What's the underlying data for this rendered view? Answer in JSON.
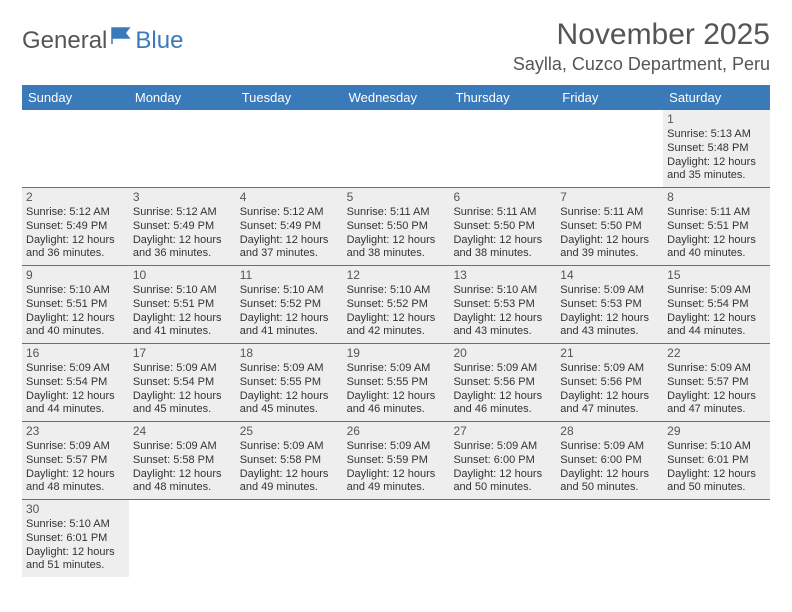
{
  "logo": {
    "text1": "General",
    "text2": "Blue"
  },
  "title": "November 2025",
  "location": "Saylla, Cuzco Department, Peru",
  "colors": {
    "header_bg": "#3b7ab8",
    "cell_bg": "#eeeeee",
    "page_bg": "#ffffff",
    "text": "#333333",
    "title_text": "#555555"
  },
  "weekdays": [
    "Sunday",
    "Monday",
    "Tuesday",
    "Wednesday",
    "Thursday",
    "Friday",
    "Saturday"
  ],
  "weeks": [
    [
      null,
      null,
      null,
      null,
      null,
      null,
      {
        "n": "1",
        "sr": "Sunrise: 5:13 AM",
        "ss": "Sunset: 5:48 PM",
        "d1": "Daylight: 12 hours",
        "d2": "and 35 minutes."
      }
    ],
    [
      {
        "n": "2",
        "sr": "Sunrise: 5:12 AM",
        "ss": "Sunset: 5:49 PM",
        "d1": "Daylight: 12 hours",
        "d2": "and 36 minutes."
      },
      {
        "n": "3",
        "sr": "Sunrise: 5:12 AM",
        "ss": "Sunset: 5:49 PM",
        "d1": "Daylight: 12 hours",
        "d2": "and 36 minutes."
      },
      {
        "n": "4",
        "sr": "Sunrise: 5:12 AM",
        "ss": "Sunset: 5:49 PM",
        "d1": "Daylight: 12 hours",
        "d2": "and 37 minutes."
      },
      {
        "n": "5",
        "sr": "Sunrise: 5:11 AM",
        "ss": "Sunset: 5:50 PM",
        "d1": "Daylight: 12 hours",
        "d2": "and 38 minutes."
      },
      {
        "n": "6",
        "sr": "Sunrise: 5:11 AM",
        "ss": "Sunset: 5:50 PM",
        "d1": "Daylight: 12 hours",
        "d2": "and 38 minutes."
      },
      {
        "n": "7",
        "sr": "Sunrise: 5:11 AM",
        "ss": "Sunset: 5:50 PM",
        "d1": "Daylight: 12 hours",
        "d2": "and 39 minutes."
      },
      {
        "n": "8",
        "sr": "Sunrise: 5:11 AM",
        "ss": "Sunset: 5:51 PM",
        "d1": "Daylight: 12 hours",
        "d2": "and 40 minutes."
      }
    ],
    [
      {
        "n": "9",
        "sr": "Sunrise: 5:10 AM",
        "ss": "Sunset: 5:51 PM",
        "d1": "Daylight: 12 hours",
        "d2": "and 40 minutes."
      },
      {
        "n": "10",
        "sr": "Sunrise: 5:10 AM",
        "ss": "Sunset: 5:51 PM",
        "d1": "Daylight: 12 hours",
        "d2": "and 41 minutes."
      },
      {
        "n": "11",
        "sr": "Sunrise: 5:10 AM",
        "ss": "Sunset: 5:52 PM",
        "d1": "Daylight: 12 hours",
        "d2": "and 41 minutes."
      },
      {
        "n": "12",
        "sr": "Sunrise: 5:10 AM",
        "ss": "Sunset: 5:52 PM",
        "d1": "Daylight: 12 hours",
        "d2": "and 42 minutes."
      },
      {
        "n": "13",
        "sr": "Sunrise: 5:10 AM",
        "ss": "Sunset: 5:53 PM",
        "d1": "Daylight: 12 hours",
        "d2": "and 43 minutes."
      },
      {
        "n": "14",
        "sr": "Sunrise: 5:09 AM",
        "ss": "Sunset: 5:53 PM",
        "d1": "Daylight: 12 hours",
        "d2": "and 43 minutes."
      },
      {
        "n": "15",
        "sr": "Sunrise: 5:09 AM",
        "ss": "Sunset: 5:54 PM",
        "d1": "Daylight: 12 hours",
        "d2": "and 44 minutes."
      }
    ],
    [
      {
        "n": "16",
        "sr": "Sunrise: 5:09 AM",
        "ss": "Sunset: 5:54 PM",
        "d1": "Daylight: 12 hours",
        "d2": "and 44 minutes."
      },
      {
        "n": "17",
        "sr": "Sunrise: 5:09 AM",
        "ss": "Sunset: 5:54 PM",
        "d1": "Daylight: 12 hours",
        "d2": "and 45 minutes."
      },
      {
        "n": "18",
        "sr": "Sunrise: 5:09 AM",
        "ss": "Sunset: 5:55 PM",
        "d1": "Daylight: 12 hours",
        "d2": "and 45 minutes."
      },
      {
        "n": "19",
        "sr": "Sunrise: 5:09 AM",
        "ss": "Sunset: 5:55 PM",
        "d1": "Daylight: 12 hours",
        "d2": "and 46 minutes."
      },
      {
        "n": "20",
        "sr": "Sunrise: 5:09 AM",
        "ss": "Sunset: 5:56 PM",
        "d1": "Daylight: 12 hours",
        "d2": "and 46 minutes."
      },
      {
        "n": "21",
        "sr": "Sunrise: 5:09 AM",
        "ss": "Sunset: 5:56 PM",
        "d1": "Daylight: 12 hours",
        "d2": "and 47 minutes."
      },
      {
        "n": "22",
        "sr": "Sunrise: 5:09 AM",
        "ss": "Sunset: 5:57 PM",
        "d1": "Daylight: 12 hours",
        "d2": "and 47 minutes."
      }
    ],
    [
      {
        "n": "23",
        "sr": "Sunrise: 5:09 AM",
        "ss": "Sunset: 5:57 PM",
        "d1": "Daylight: 12 hours",
        "d2": "and 48 minutes."
      },
      {
        "n": "24",
        "sr": "Sunrise: 5:09 AM",
        "ss": "Sunset: 5:58 PM",
        "d1": "Daylight: 12 hours",
        "d2": "and 48 minutes."
      },
      {
        "n": "25",
        "sr": "Sunrise: 5:09 AM",
        "ss": "Sunset: 5:58 PM",
        "d1": "Daylight: 12 hours",
        "d2": "and 49 minutes."
      },
      {
        "n": "26",
        "sr": "Sunrise: 5:09 AM",
        "ss": "Sunset: 5:59 PM",
        "d1": "Daylight: 12 hours",
        "d2": "and 49 minutes."
      },
      {
        "n": "27",
        "sr": "Sunrise: 5:09 AM",
        "ss": "Sunset: 6:00 PM",
        "d1": "Daylight: 12 hours",
        "d2": "and 50 minutes."
      },
      {
        "n": "28",
        "sr": "Sunrise: 5:09 AM",
        "ss": "Sunset: 6:00 PM",
        "d1": "Daylight: 12 hours",
        "d2": "and 50 minutes."
      },
      {
        "n": "29",
        "sr": "Sunrise: 5:10 AM",
        "ss": "Sunset: 6:01 PM",
        "d1": "Daylight: 12 hours",
        "d2": "and 50 minutes."
      }
    ],
    [
      {
        "n": "30",
        "sr": "Sunrise: 5:10 AM",
        "ss": "Sunset: 6:01 PM",
        "d1": "Daylight: 12 hours",
        "d2": "and 51 minutes."
      },
      null,
      null,
      null,
      null,
      null,
      null
    ]
  ]
}
